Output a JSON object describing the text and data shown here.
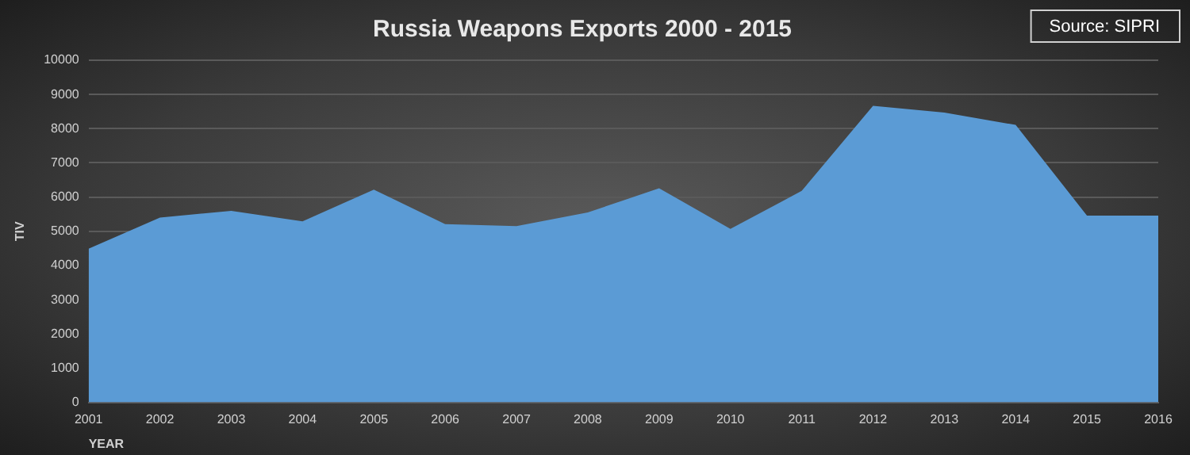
{
  "chart_data": {
    "type": "area",
    "title": "Russia Weapons Exports 2000 - 2015",
    "xlabel": "YEAR",
    "ylabel": "TIV",
    "annotations": [
      "Source: SIPRI"
    ],
    "categories": [
      "2001",
      "2002",
      "2003",
      "2004",
      "2005",
      "2006",
      "2007",
      "2008",
      "2009",
      "2010",
      "2011",
      "2012",
      "2013",
      "2014",
      "2015",
      "2016"
    ],
    "values": [
      4490,
      5400,
      5600,
      5290,
      6220,
      5210,
      5150,
      5550,
      6260,
      5070,
      6180,
      8670,
      8470,
      8110,
      5460,
      5460
    ],
    "color": "#5b9bd5",
    "ylim": [
      0,
      10000
    ],
    "yticks": [
      0,
      1000,
      2000,
      3000,
      4000,
      5000,
      6000,
      7000,
      8000,
      9000,
      10000
    ],
    "grid": "y"
  }
}
